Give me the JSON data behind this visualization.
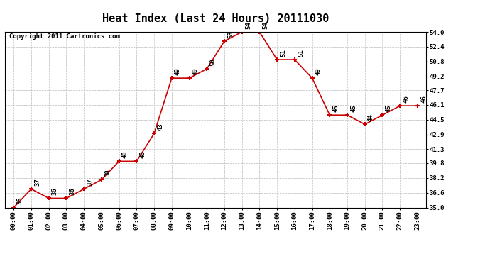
{
  "title": "Heat Index (Last 24 Hours) 20111030",
  "copyright": "Copyright 2011 Cartronics.com",
  "x_labels": [
    "00:00",
    "01:00",
    "02:00",
    "03:00",
    "04:00",
    "05:00",
    "06:00",
    "07:00",
    "08:00",
    "09:00",
    "10:00",
    "11:00",
    "12:00",
    "13:00",
    "14:00",
    "15:00",
    "16:00",
    "17:00",
    "18:00",
    "19:00",
    "20:00",
    "21:00",
    "22:00",
    "23:00"
  ],
  "y_values": [
    35,
    37,
    36,
    36,
    37,
    38,
    40,
    40,
    43,
    49,
    49,
    50,
    53,
    54,
    54,
    51,
    51,
    49,
    45,
    45,
    44,
    45,
    46,
    46
  ],
  "ylim_min": 35.0,
  "ylim_max": 54.0,
  "yticks": [
    35.0,
    36.6,
    38.2,
    39.8,
    41.3,
    42.9,
    44.5,
    46.1,
    47.7,
    49.2,
    50.8,
    52.4,
    54.0
  ],
  "line_color": "#cc0000",
  "marker": "+",
  "bg_color": "#ffffff",
  "grid_color": "#bbbbbb",
  "title_fontsize": 11,
  "label_fontsize": 6.5,
  "point_label_fontsize": 6.5,
  "copyright_fontsize": 6.5
}
